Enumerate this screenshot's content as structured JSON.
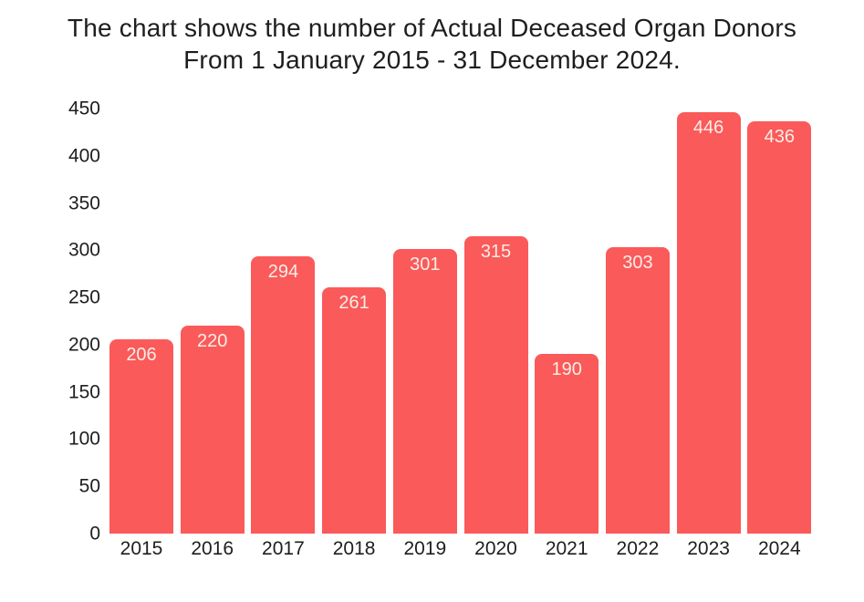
{
  "title": {
    "lines": [
      "The chart shows the number of Actual Deceased Organ Donors",
      "From 1 January 2015 - 31 December 2024."
    ]
  },
  "chart_data": {
    "type": "bar",
    "title": "The chart shows the number of Actual Deceased Organ Donors From 1 January 2015 - 31 December 2024.",
    "categories": [
      "2015",
      "2016",
      "2017",
      "2018",
      "2019",
      "2020",
      "2021",
      "2022",
      "2023",
      "2024"
    ],
    "values": [
      206,
      220,
      294,
      261,
      301,
      315,
      190,
      303,
      446,
      436
    ],
    "xlabel": "",
    "ylabel": "",
    "ylim": [
      0,
      450
    ],
    "y_ticks": [
      0,
      50,
      100,
      150,
      200,
      250,
      300,
      350,
      400,
      450
    ],
    "grid": false,
    "legend": "none",
    "bar_value_labels_visible": true
  },
  "colors": {
    "background": "#FFFFFF",
    "bar": "#FA5A5A",
    "bar_value_label": "#F9EEE7",
    "axis_text": "#1E1E1E",
    "title_text": "#1E1E1E"
  }
}
